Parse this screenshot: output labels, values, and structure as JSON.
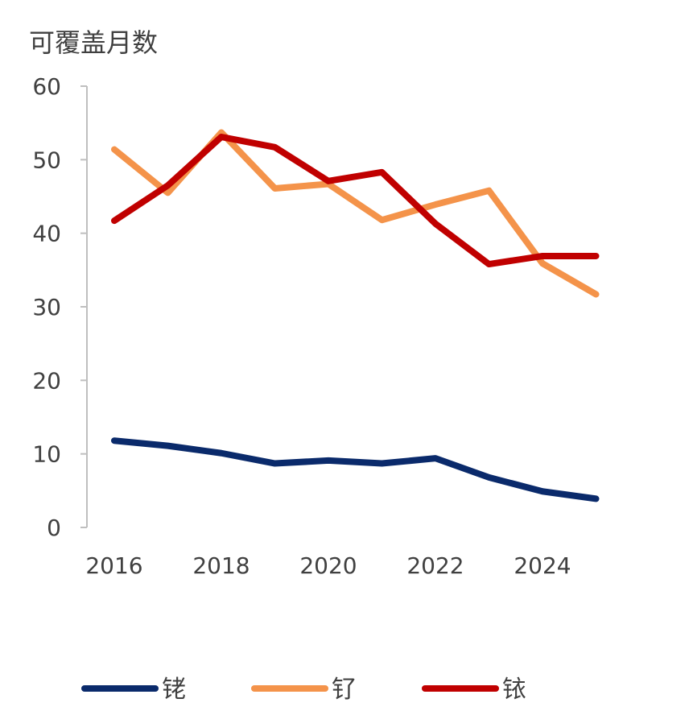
{
  "chart_data": {
    "type": "line",
    "title": "",
    "ylabel": "可覆盖月数",
    "xlabel": "",
    "x": [
      2016,
      2017,
      2018,
      2019,
      2020,
      2021,
      2022,
      2023,
      2024,
      2025
    ],
    "xticks": [
      "2016",
      "2018",
      "2020",
      "2022",
      "2024"
    ],
    "yticks": [
      "0",
      "10",
      "20",
      "30",
      "40",
      "50",
      "60"
    ],
    "ylim": [
      0,
      60
    ],
    "grid": false,
    "legend_position": "bottom",
    "series": [
      {
        "name": "铑",
        "color": "#0a2a6b",
        "values": [
          11.8,
          11.1,
          10.1,
          8.7,
          9.1,
          8.7,
          9.4,
          6.8,
          4.9,
          3.9
        ]
      },
      {
        "name": "钌",
        "color": "#f4934a",
        "values": [
          51.4,
          45.5,
          53.7,
          46.1,
          46.7,
          41.8,
          43.9,
          45.8,
          35.9,
          31.7
        ]
      },
      {
        "name": "铱",
        "color": "#c00000",
        "values": [
          41.7,
          46.5,
          53.1,
          51.7,
          47.1,
          48.3,
          41.3,
          35.8,
          36.9,
          36.9
        ]
      }
    ]
  }
}
